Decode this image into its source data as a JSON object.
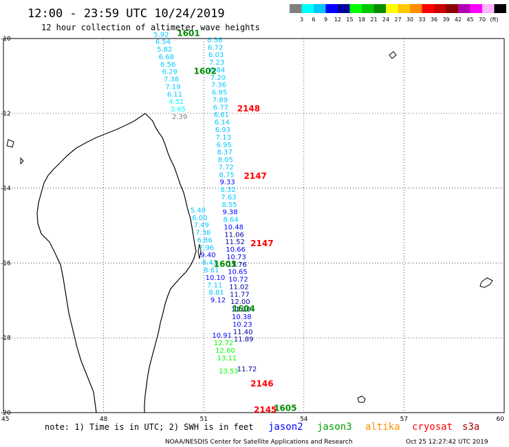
{
  "header": {
    "title": "12:00 - 23:59 UTC 10/24/2019",
    "subtitle": "12 hour collection of altimeter wave heights"
  },
  "legend": {
    "colors": [
      "#808080",
      "#00ffff",
      "#00c8ff",
      "#0000ff",
      "#0000a0",
      "#00ff00",
      "#00c800",
      "#008c00",
      "#ffff00",
      "#ffc800",
      "#ff8c00",
      "#ff0000",
      "#c80000",
      "#8c0000",
      "#b400b4",
      "#ff00ff",
      "#ffb4ff",
      "#000000"
    ],
    "labels": [
      "3",
      "6",
      "9",
      "12",
      "15",
      "18",
      "21",
      "24",
      "27",
      "30",
      "33",
      "36",
      "39",
      "42",
      "45",
      "70",
      "(ft)"
    ]
  },
  "axes": {
    "lon_ticks": [
      "45",
      "48",
      "51",
      "54",
      "57",
      "60"
    ],
    "lat_ticks": [
      "-10",
      "-12",
      "-14",
      "-16",
      "-18",
      "-20"
    ]
  },
  "tracks": [
    {
      "label": "1601",
      "lon": 50.2,
      "lat": -9.94,
      "color": "#008c00"
    },
    {
      "label": "1602",
      "lon": 50.7,
      "lat": -10.95,
      "color": "#008c00"
    },
    {
      "label": "2148",
      "lon": 52.0,
      "lat": -11.95,
      "color": "#ff0000"
    },
    {
      "label": "2147",
      "lon": 52.2,
      "lat": -13.75,
      "color": "#ff0000"
    },
    {
      "label": "2147",
      "lon": 52.4,
      "lat": -15.55,
      "color": "#ff0000"
    },
    {
      "label": "1603",
      "lon": 51.3,
      "lat": -16.1,
      "color": "#008c00"
    },
    {
      "label": "1604",
      "lon": 51.85,
      "lat": -17.3,
      "color": "#008c00"
    },
    {
      "label": "2146",
      "lon": 52.4,
      "lat": -19.3,
      "color": "#ff0000"
    },
    {
      "label": "1605",
      "lon": 53.1,
      "lat": -19.95,
      "color": "#008c00"
    },
    {
      "label": "2145",
      "lon": 52.5,
      "lat": -20.0,
      "color": "#ff0000"
    }
  ],
  "observations": [
    {
      "v": "5.92",
      "lon": 49.5,
      "lat": -9.95,
      "color": "#00c8ff"
    },
    {
      "v": "6.54",
      "lon": 49.55,
      "lat": -10.15,
      "color": "#00c8ff"
    },
    {
      "v": "5.82",
      "lon": 49.6,
      "lat": -10.35,
      "color": "#00c8ff"
    },
    {
      "v": "6.68",
      "lon": 49.65,
      "lat": -10.55,
      "color": "#00c8ff"
    },
    {
      "v": "6.56",
      "lon": 49.7,
      "lat": -10.75,
      "color": "#00c8ff"
    },
    {
      "v": "6.29",
      "lon": 49.75,
      "lat": -10.95,
      "color": "#00c8ff"
    },
    {
      "v": "7.38",
      "lon": 49.8,
      "lat": -11.15,
      "color": "#00c8ff"
    },
    {
      "v": "7.19",
      "lon": 49.85,
      "lat": -11.35,
      "color": "#00c8ff"
    },
    {
      "v": "6.11",
      "lon": 49.9,
      "lat": -11.55,
      "color": "#00c8ff"
    },
    {
      "v": "4.51",
      "lon": 49.95,
      "lat": -11.75,
      "color": "#00ffff"
    },
    {
      "v": "3.65",
      "lon": 50.0,
      "lat": -11.95,
      "color": "#00ffff"
    },
    {
      "v": "2.39",
      "lon": 50.05,
      "lat": -12.15,
      "color": "#808080"
    },
    {
      "v": "6.36",
      "lon": 51.1,
      "lat": -10.1,
      "color": "#00c8ff"
    },
    {
      "v": "6.72",
      "lon": 51.12,
      "lat": -10.3,
      "color": "#00c8ff"
    },
    {
      "v": "6.03",
      "lon": 51.14,
      "lat": -10.5,
      "color": "#00c8ff"
    },
    {
      "v": "7.23",
      "lon": 51.16,
      "lat": -10.7,
      "color": "#00c8ff"
    },
    {
      "v": "6.84",
      "lon": 51.18,
      "lat": -10.9,
      "color": "#00c8ff"
    },
    {
      "v": "7.20",
      "lon": 51.2,
      "lat": -11.1,
      "color": "#00c8ff"
    },
    {
      "v": "7.36",
      "lon": 51.22,
      "lat": -11.3,
      "color": "#00c8ff"
    },
    {
      "v": "6.95",
      "lon": 51.24,
      "lat": -11.5,
      "color": "#00c8ff"
    },
    {
      "v": "7.89",
      "lon": 51.26,
      "lat": -11.7,
      "color": "#00c8ff"
    },
    {
      "v": "6.77",
      "lon": 51.28,
      "lat": -11.9,
      "color": "#00c8ff"
    },
    {
      "v": "6.61",
      "lon": 51.3,
      "lat": -12.1,
      "color": "#00c8ff"
    },
    {
      "v": "6.14",
      "lon": 51.32,
      "lat": -12.3,
      "color": "#00c8ff"
    },
    {
      "v": "6.93",
      "lon": 51.34,
      "lat": -12.5,
      "color": "#00c8ff"
    },
    {
      "v": "7.13",
      "lon": 51.36,
      "lat": -12.7,
      "color": "#00c8ff"
    },
    {
      "v": "6.95",
      "lon": 51.38,
      "lat": -12.9,
      "color": "#00c8ff"
    },
    {
      "v": "8.37",
      "lon": 51.4,
      "lat": -13.1,
      "color": "#00c8ff"
    },
    {
      "v": "8.05",
      "lon": 51.42,
      "lat": -13.3,
      "color": "#00c8ff"
    },
    {
      "v": "7.72",
      "lon": 51.44,
      "lat": -13.5,
      "color": "#00c8ff"
    },
    {
      "v": "8.75",
      "lon": 51.46,
      "lat": -13.7,
      "color": "#00c8ff"
    },
    {
      "v": "9.33",
      "lon": 51.48,
      "lat": -13.9,
      "color": "#0000ff"
    },
    {
      "v": "8.32",
      "lon": 51.5,
      "lat": -14.1,
      "color": "#00c8ff"
    },
    {
      "v": "7.63",
      "lon": 51.52,
      "lat": -14.3,
      "color": "#00c8ff"
    },
    {
      "v": "8.55",
      "lon": 51.54,
      "lat": -14.5,
      "color": "#00c8ff"
    },
    {
      "v": "9.38",
      "lon": 51.56,
      "lat": -14.7,
      "color": "#0000ff"
    },
    {
      "v": "8.64",
      "lon": 51.58,
      "lat": -14.9,
      "color": "#00c8ff"
    },
    {
      "v": "10.48",
      "lon": 51.6,
      "lat": -15.1,
      "color": "#0000ff"
    },
    {
      "v": "11.06",
      "lon": 51.62,
      "lat": -15.3,
      "color": "#0000a0"
    },
    {
      "v": "11.52",
      "lon": 51.64,
      "lat": -15.5,
      "color": "#0000a0"
    },
    {
      "v": "10.66",
      "lon": 51.66,
      "lat": -15.7,
      "color": "#0000ff"
    },
    {
      "v": "10.73",
      "lon": 51.68,
      "lat": -15.9,
      "color": "#0000ff"
    },
    {
      "v": "11.76",
      "lon": 51.7,
      "lat": -16.1,
      "color": "#0000a0"
    },
    {
      "v": "10.65",
      "lon": 51.72,
      "lat": -16.3,
      "color": "#0000ff"
    },
    {
      "v": "10.72",
      "lon": 51.74,
      "lat": -16.5,
      "color": "#0000ff"
    },
    {
      "v": "11.02",
      "lon": 51.76,
      "lat": -16.7,
      "color": "#0000a0"
    },
    {
      "v": "11.77",
      "lon": 51.78,
      "lat": -16.9,
      "color": "#0000a0"
    },
    {
      "v": "12.00",
      "lon": 51.8,
      "lat": -17.1,
      "color": "#0000a0"
    },
    {
      "v": "11.20",
      "lon": 51.82,
      "lat": -17.3,
      "color": "#0000a0"
    },
    {
      "v": "10.38",
      "lon": 51.84,
      "lat": -17.5,
      "color": "#0000ff"
    },
    {
      "v": "10.23",
      "lon": 51.86,
      "lat": -17.7,
      "color": "#0000ff"
    },
    {
      "v": "11.40",
      "lon": 51.88,
      "lat": -17.9,
      "color": "#0000a0"
    },
    {
      "v": "11.89",
      "lon": 51.9,
      "lat": -18.1,
      "color": "#0000a0"
    },
    {
      "v": "11.72",
      "lon": 52.0,
      "lat": -18.9,
      "color": "#0000a0"
    },
    {
      "v": "5.40",
      "lon": 50.6,
      "lat": -14.65,
      "color": "#00c8ff"
    },
    {
      "v": "6.00",
      "lon": 50.65,
      "lat": -14.85,
      "color": "#00c8ff"
    },
    {
      "v": "7.49",
      "lon": 50.7,
      "lat": -15.05,
      "color": "#00c8ff"
    },
    {
      "v": "7.38",
      "lon": 50.75,
      "lat": -15.25,
      "color": "#00c8ff"
    },
    {
      "v": "6.86",
      "lon": 50.8,
      "lat": -15.45,
      "color": "#00c8ff"
    },
    {
      "v": "7.96",
      "lon": 50.85,
      "lat": -15.65,
      "color": "#00c8ff"
    },
    {
      "v": "9.40",
      "lon": 50.9,
      "lat": -15.85,
      "color": "#0000ff"
    },
    {
      "v": "8.41",
      "lon": 50.95,
      "lat": -16.05,
      "color": "#00c8ff"
    },
    {
      "v": "8.61",
      "lon": 51.0,
      "lat": -16.25,
      "color": "#00c8ff"
    },
    {
      "v": "10.10",
      "lon": 51.05,
      "lat": -16.45,
      "color": "#0000ff"
    },
    {
      "v": "7.11",
      "lon": 51.1,
      "lat": -16.65,
      "color": "#00c8ff"
    },
    {
      "v": "8.81",
      "lon": 51.15,
      "lat": -16.85,
      "color": "#00c8ff"
    },
    {
      "v": "9.12",
      "lon": 51.2,
      "lat": -17.05,
      "color": "#0000ff"
    },
    {
      "v": "10.91",
      "lon": 51.25,
      "lat": -18.0,
      "color": "#0000ff"
    },
    {
      "v": "12.72",
      "lon": 51.3,
      "lat": -18.2,
      "color": "#00ff00"
    },
    {
      "v": "12.60",
      "lon": 51.35,
      "lat": -18.4,
      "color": "#00ff00"
    },
    {
      "v": "13.11",
      "lon": 51.4,
      "lat": -18.6,
      "color": "#00ff00"
    },
    {
      "v": "13.53",
      "lon": 51.45,
      "lat": -18.95,
      "color": "#00ff00"
    }
  ],
  "notes": {
    "note": "note: 1) Time is in UTC; 2) SWH is in feet",
    "satellites": [
      {
        "name": "jason2",
        "color": "#0000ff"
      },
      {
        "name": "jason3",
        "color": "#00a000"
      },
      {
        "name": "altika",
        "color": "#ff8c00"
      },
      {
        "name": "cryosat",
        "color": "#ff0000"
      },
      {
        "name": "s3a",
        "color": "#a00000"
      }
    ],
    "credit": "NOAA/NESDIS Center for Satellite Applications and Research",
    "timestamp": "Oct 25 12:27:42 UTC 2019"
  }
}
